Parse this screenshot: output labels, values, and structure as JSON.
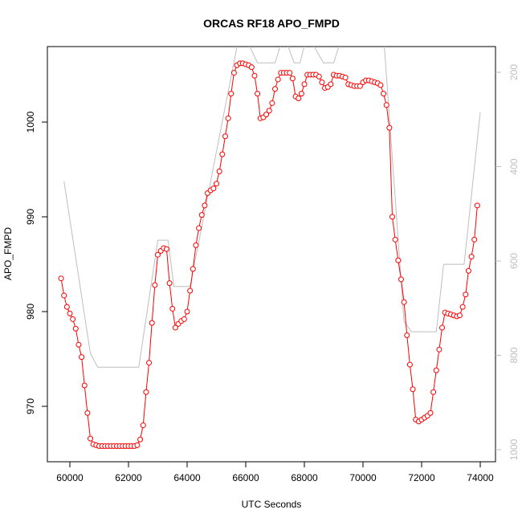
{
  "chart_data": {
    "type": "line",
    "title": "ORCAS RF18 APO_FMPD",
    "xlabel": "UTC Seconds",
    "ylabel": "APO_FMPD",
    "xlim": [
      59233,
      74520
    ],
    "ylim": [
      964.15,
      1007.97
    ],
    "y2lim": [
      1025.5,
      145.5
    ],
    "xticks": [
      60000,
      62000,
      64000,
      66000,
      68000,
      70000,
      72000,
      74000
    ],
    "yticks": [
      970,
      980,
      990,
      1000
    ],
    "y2ticks": [
      200,
      400,
      600,
      800,
      1000
    ],
    "series": [
      {
        "color": "#ff0000",
        "x": [
          59700,
          59800,
          59900,
          60000,
          60100,
          60200,
          60300,
          60400,
          60500,
          60600,
          60700,
          60800,
          60900,
          61000,
          61100,
          61200,
          61300,
          61400,
          61500,
          61600,
          61700,
          61800,
          61900,
          62000,
          62100,
          62200,
          62300,
          62400,
          62500,
          62600,
          62700,
          62800,
          62900,
          63000,
          63100,
          63200,
          63300,
          63400,
          63500,
          63600,
          63700,
          63800,
          63900,
          64000,
          64100,
          64200,
          64300,
          64400,
          64500,
          64600,
          64700,
          64800,
          64900,
          65000,
          65100,
          65200,
          65300,
          65400,
          65500,
          65600,
          65700,
          65800,
          65900,
          66000,
          66100,
          66200,
          66300,
          66400,
          66500,
          66600,
          66700,
          66800,
          66900,
          67000,
          67100,
          67200,
          67300,
          67400,
          67500,
          67600,
          67700,
          67800,
          67900,
          68000,
          68100,
          68200,
          68300,
          68400,
          68500,
          68600,
          68700,
          68800,
          68900,
          69000,
          69100,
          69200,
          69300,
          69400,
          69500,
          69600,
          69700,
          69800,
          69900,
          70000,
          70100,
          70200,
          70300,
          70400,
          70500,
          70600,
          70700,
          70800,
          70900,
          71000,
          71100,
          71200,
          71300,
          71400,
          71500,
          71600,
          71700,
          71800,
          71900,
          72000,
          72100,
          72200,
          72300,
          72400,
          72500,
          72600,
          72700,
          72800,
          72900,
          73000,
          73100,
          73200,
          73300,
          73400,
          73500,
          73600,
          73700,
          73800,
          73900
        ],
        "values": [
          983.5,
          981.7,
          980.5,
          979.8,
          979.2,
          978.2,
          976.5,
          975.2,
          972.2,
          969.3,
          966.6,
          966.0,
          965.9,
          965.8,
          965.8,
          965.8,
          965.8,
          965.8,
          965.8,
          965.8,
          965.8,
          965.8,
          965.8,
          965.8,
          965.8,
          965.8,
          965.9,
          966.5,
          968,
          971.5,
          974.6,
          978.8,
          982.8,
          986,
          986.4,
          986.7,
          986.6,
          983,
          980.3,
          978.3,
          978.7,
          979,
          979.2,
          980,
          982.2,
          984.5,
          987,
          988.8,
          990.2,
          991.2,
          992.5,
          992.8,
          993,
          993.5,
          994.8,
          996.6,
          998.5,
          1000.4,
          1003,
          1005.2,
          1006,
          1006.2,
          1006.2,
          1006.1,
          1006,
          1005.8,
          1004.9,
          1003,
          1000.4,
          1000.5,
          1000.8,
          1001.2,
          1002,
          1003.5,
          1004.5,
          1005.2,
          1005.2,
          1005.2,
          1005.2,
          1004.6,
          1002.7,
          1002.5,
          1003,
          1004,
          1005,
          1005,
          1005,
          1005,
          1004.8,
          1004.2,
          1003.6,
          1003.7,
          1004,
          1005,
          1004.9,
          1004.9,
          1004.8,
          1004.7,
          1004,
          1003.9,
          1003.8,
          1003.8,
          1003.8,
          1004.2,
          1004.4,
          1004.4,
          1004.3,
          1004.2,
          1004.1,
          1003.9,
          1003,
          1001.8,
          999.4,
          990,
          987.6,
          985.4,
          983.4,
          981,
          977.5,
          974.4,
          971.8,
          968.6,
          968.4,
          968.6,
          968.8,
          969,
          969.3,
          971.5,
          973.8,
          976,
          978.3,
          979.9,
          979.8,
          979.7,
          979.6,
          979.5,
          979.6,
          980.5,
          981.8,
          984.3,
          985.8,
          987.6,
          991.2
        ]
      },
      {
        "color": "#bebebe",
        "axis": "y2",
        "x": [
          59800,
          60700,
          60950,
          62350,
          63000,
          63350,
          63550,
          64100,
          65700,
          65950,
          66400,
          67000,
          67300,
          67650,
          67850,
          68100,
          68650,
          69000,
          69300,
          70700,
          71400,
          71650,
          72500,
          72750,
          73450,
          74000
        ],
        "values": [
          431,
          796,
          825,
          825,
          556,
          556,
          654,
          654,
          146,
          120,
          180,
          180,
          120,
          180,
          180,
          120,
          180,
          180,
          120,
          120,
          728,
          750,
          750,
          607,
          607,
          285
        ]
      }
    ]
  }
}
